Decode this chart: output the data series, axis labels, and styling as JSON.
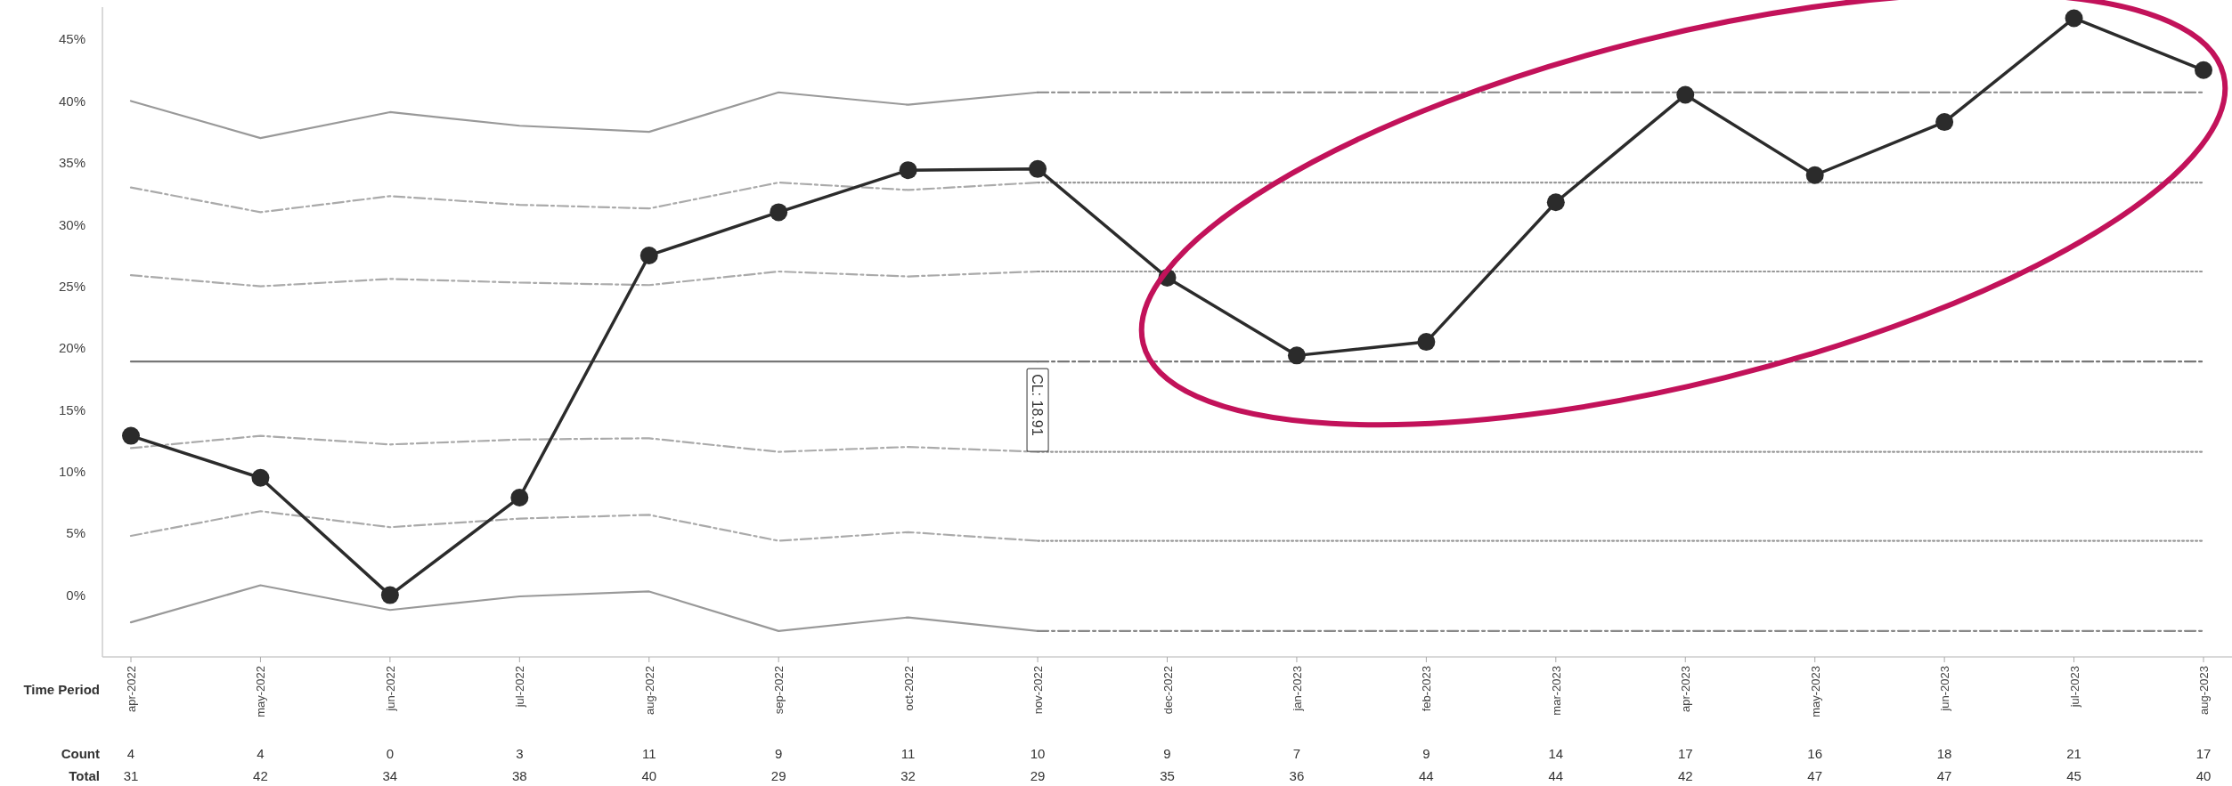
{
  "chart_data": {
    "type": "line",
    "xlabel": "Time Period",
    "categories": [
      "apr-2022",
      "may-2022",
      "jun-2022",
      "jul-2022",
      "aug-2022",
      "sep-2022",
      "oct-2022",
      "nov-2022",
      "dec-2022",
      "jan-2023",
      "feb-2023",
      "mar-2023",
      "apr-2023",
      "may-2023",
      "jun-2023",
      "jul-2023",
      "aug-2023"
    ],
    "series": [
      {
        "color": "#999999",
        "line_style": "solid",
        "marker": "none",
        "values": [
          40.0,
          37.0,
          39.1,
          38.0,
          37.5,
          40.7,
          39.7,
          40.7,
          null,
          null,
          null,
          null,
          null,
          null,
          null,
          null,
          null
        ]
      },
      {
        "color": "#aaaaaa",
        "line_style": "dashed",
        "marker": "none",
        "values": [
          33.0,
          31.0,
          32.3,
          31.6,
          31.3,
          33.4,
          32.8,
          33.4,
          null,
          null,
          null,
          null,
          null,
          null,
          null,
          null,
          null
        ]
      },
      {
        "color": "#aaaaaa",
        "line_style": "dashed",
        "marker": "none",
        "values": [
          25.9,
          25.0,
          25.6,
          25.3,
          25.1,
          26.2,
          25.8,
          26.2,
          null,
          null,
          null,
          null,
          null,
          null,
          null,
          null,
          null
        ]
      },
      {
        "color": "#777777",
        "line_style": "solid",
        "marker": "none",
        "values": [
          18.91,
          18.91,
          18.91,
          18.91,
          18.91,
          18.91,
          18.91,
          18.91,
          null,
          null,
          null,
          null,
          null,
          null,
          null,
          null,
          null
        ]
      },
      {
        "color": "#aaaaaa",
        "line_style": "dashed",
        "marker": "none",
        "values": [
          11.9,
          12.9,
          12.2,
          12.6,
          12.7,
          11.6,
          12.0,
          11.6,
          null,
          null,
          null,
          null,
          null,
          null,
          null,
          null,
          null
        ]
      },
      {
        "color": "#aaaaaa",
        "line_style": "dashed",
        "marker": "none",
        "values": [
          4.8,
          6.8,
          5.5,
          6.2,
          6.5,
          4.4,
          5.1,
          4.4,
          null,
          null,
          null,
          null,
          null,
          null,
          null,
          null,
          null
        ]
      },
      {
        "color": "#999999",
        "line_style": "solid",
        "marker": "none",
        "values": [
          -2.2,
          0.8,
          -1.2,
          -0.1,
          0.3,
          -2.9,
          -1.8,
          -2.9,
          null,
          null,
          null,
          null,
          null,
          null,
          null,
          null,
          null
        ]
      },
      {
        "color": "#888888",
        "line_style": "dashed",
        "marker": "none",
        "values": [
          null,
          null,
          null,
          null,
          null,
          null,
          null,
          40.7,
          40.7,
          40.7,
          40.7,
          40.7,
          40.7,
          40.7,
          40.7,
          40.7,
          40.7
        ]
      },
      {
        "color": "#999999",
        "line_style": "dotted",
        "marker": "none",
        "values": [
          null,
          null,
          null,
          null,
          null,
          null,
          null,
          33.4,
          33.4,
          33.4,
          33.4,
          33.4,
          33.4,
          33.4,
          33.4,
          33.4,
          33.4
        ]
      },
      {
        "color": "#999999",
        "line_style": "dotted",
        "marker": "none",
        "values": [
          null,
          null,
          null,
          null,
          null,
          null,
          null,
          26.2,
          26.2,
          26.2,
          26.2,
          26.2,
          26.2,
          26.2,
          26.2,
          26.2,
          26.2
        ]
      },
      {
        "color": "#777777",
        "line_style": "dashed",
        "marker": "none",
        "values": [
          null,
          null,
          null,
          null,
          null,
          null,
          null,
          18.91,
          18.91,
          18.91,
          18.91,
          18.91,
          18.91,
          18.91,
          18.91,
          18.91,
          18.91
        ]
      },
      {
        "color": "#999999",
        "line_style": "dotted",
        "marker": "none",
        "values": [
          null,
          null,
          null,
          null,
          null,
          null,
          null,
          11.6,
          11.6,
          11.6,
          11.6,
          11.6,
          11.6,
          11.6,
          11.6,
          11.6,
          11.6
        ]
      },
      {
        "color": "#999999",
        "line_style": "dotted",
        "marker": "none",
        "values": [
          null,
          null,
          null,
          null,
          null,
          null,
          null,
          4.4,
          4.4,
          4.4,
          4.4,
          4.4,
          4.4,
          4.4,
          4.4,
          4.4,
          4.4
        ]
      },
      {
        "color": "#888888",
        "line_style": "dashed",
        "marker": "none",
        "values": [
          null,
          null,
          null,
          null,
          null,
          null,
          null,
          -2.9,
          -2.9,
          -2.9,
          -2.9,
          -2.9,
          -2.9,
          -2.9,
          -2.9,
          -2.9,
          -2.9
        ]
      },
      {
        "color": "#2b2b2b",
        "line_style": "solid",
        "marker": "circle",
        "values": [
          12.9,
          9.5,
          0,
          7.9,
          27.5,
          31.0,
          34.4,
          34.5,
          25.7,
          19.4,
          20.5,
          31.8,
          40.5,
          34.0,
          38.3,
          46.7,
          42.5
        ]
      }
    ],
    "ylim": [
      -5,
      47.6
    ],
    "yticks": [
      {
        "value": 0,
        "label": "0%"
      },
      {
        "value": 5,
        "label": "5%"
      },
      {
        "value": 10,
        "label": "10%"
      },
      {
        "value": 15,
        "label": "15%"
      },
      {
        "value": 20,
        "label": "20%"
      },
      {
        "value": 25,
        "label": "25%"
      },
      {
        "value": 30,
        "label": "30%"
      },
      {
        "value": 35,
        "label": "35%"
      },
      {
        "value": 40,
        "label": "40%"
      },
      {
        "value": 45,
        "label": "45%"
      }
    ],
    "grid": false,
    "annotations": [
      {
        "text": "CL: 18.91",
        "x": "nov-2022",
        "y": 18.91
      },
      "Count",
      "4",
      "4",
      "0",
      "3",
      "11",
      "9",
      "11",
      "10",
      "9",
      "7",
      "9",
      "14",
      "17",
      "16",
      "18",
      "21",
      "17",
      "Total",
      "31",
      "42",
      "34",
      "38",
      "40",
      "29",
      "32",
      "29",
      "35",
      "36",
      "44",
      "44",
      "42",
      "47",
      "47",
      "45",
      "40"
    ]
  }
}
